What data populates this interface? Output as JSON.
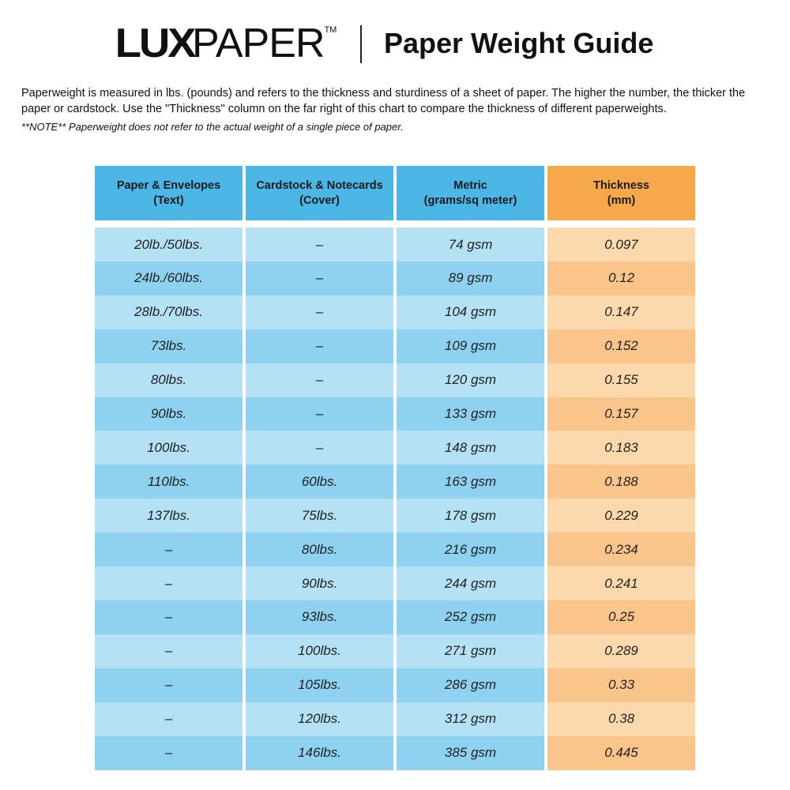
{
  "header": {
    "logo_text": "LUXPAPER",
    "title": "Paper Weight Guide",
    "intro": "Paperweight is measured in lbs. (pounds) and refers to the thickness and sturdiness of a sheet of paper. The higher the number, the thicker the paper or cardstock. Use the \"Thickness\" column on the far right of this chart to compare the thickness of different paperweights.",
    "note": "**NOTE** Paperweight does not refer to the actual weight of a single piece of paper."
  },
  "colors": {
    "blue_header": "#4cb7e6",
    "blue_light": "#b5e1f5",
    "blue_dark": "#8fd1f0",
    "orange_header": "#f7a84b",
    "orange_light": "#fcd9ad",
    "orange_dark": "#f9c58a"
  },
  "table": {
    "columns": [
      "Paper & Envelopes\n(Text)",
      "Cardstock & Notecards\n(Cover)",
      "Metric\n(grams/sq meter)",
      "Thickness\n(mm)"
    ],
    "rows": [
      [
        "20lb./50lbs.",
        "–",
        "74 gsm",
        "0.097"
      ],
      [
        "24lb./60lbs.",
        "–",
        "89 gsm",
        "0.12"
      ],
      [
        "28lb./70lbs.",
        "–",
        "104 gsm",
        "0.147"
      ],
      [
        "73lbs.",
        "–",
        "109 gsm",
        "0.152"
      ],
      [
        "80lbs.",
        "–",
        "120 gsm",
        "0.155"
      ],
      [
        "90lbs.",
        "–",
        "133 gsm",
        "0.157"
      ],
      [
        "100lbs.",
        "–",
        "148 gsm",
        "0.183"
      ],
      [
        "110lbs.",
        "60lbs.",
        "163 gsm",
        "0.188"
      ],
      [
        "137lbs.",
        "75lbs.",
        "178 gsm",
        "0.229"
      ],
      [
        "–",
        "80lbs.",
        "216 gsm",
        "0.234"
      ],
      [
        "–",
        "90lbs.",
        "244 gsm",
        "0.241"
      ],
      [
        "–",
        "93lbs.",
        "252 gsm",
        "0.25"
      ],
      [
        "–",
        "100lbs.",
        "271 gsm",
        "0.289"
      ],
      [
        "–",
        "105lbs.",
        "286 gsm",
        "0.33"
      ],
      [
        "–",
        "120lbs.",
        "312 gsm",
        "0.38"
      ],
      [
        "–",
        "146lbs.",
        "385 gsm",
        "0.445"
      ]
    ]
  }
}
